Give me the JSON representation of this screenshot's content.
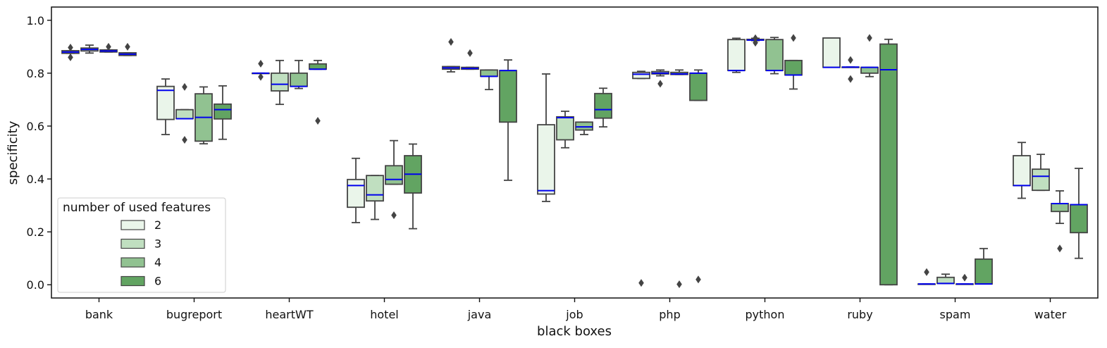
{
  "chart_data": {
    "type": "boxplot",
    "title": "",
    "xlabel": "black boxes",
    "ylabel": "specificity",
    "ylim": [
      -0.05,
      1.05
    ],
    "yticks": [
      0.0,
      0.2,
      0.4,
      0.6,
      0.8,
      1.0
    ],
    "ytick_labels": [
      "0.0",
      "0.2",
      "0.4",
      "0.6",
      "0.8",
      "1.0"
    ],
    "categories": [
      "bank",
      "bugreport",
      "heartWT",
      "hotel",
      "java",
      "job",
      "php",
      "python",
      "ruby",
      "spam",
      "water"
    ],
    "legend": {
      "title": "number of used features",
      "placement": "lower-left",
      "entries": [
        "2",
        "3",
        "4",
        "6"
      ]
    },
    "colors": {
      "series": [
        "#eaf5ea",
        "#c0dfc0",
        "#91c291",
        "#62a462"
      ],
      "median": "#0000ee",
      "edge": "#444444"
    },
    "grid": false,
    "series": [
      {
        "name": "2",
        "boxes": [
          {
            "q1": 0.875,
            "median": 0.88,
            "q3": 0.885,
            "whislo": 0.875,
            "whishi": 0.885,
            "fliers": [
              0.86,
              0.897
            ]
          },
          {
            "q1": 0.625,
            "median": 0.735,
            "q3": 0.75,
            "whislo": 0.568,
            "whishi": 0.778,
            "fliers": []
          },
          {
            "q1": 0.8,
            "median": 0.8,
            "q3": 0.8,
            "whislo": 0.8,
            "whishi": 0.8,
            "fliers": [
              0.786,
              0.836
            ]
          },
          {
            "q1": 0.293,
            "median": 0.375,
            "q3": 0.398,
            "whislo": 0.235,
            "whishi": 0.478,
            "fliers": []
          },
          {
            "q1": 0.815,
            "median": 0.82,
            "q3": 0.825,
            "whislo": 0.805,
            "whishi": 0.825,
            "fliers": [
              0.918
            ]
          },
          {
            "q1": 0.343,
            "median": 0.356,
            "q3": 0.605,
            "whislo": 0.315,
            "whishi": 0.797,
            "fliers": []
          },
          {
            "q1": 0.78,
            "median": 0.796,
            "q3": 0.803,
            "whislo": 0.78,
            "whishi": 0.807,
            "fliers": [
              0.007
            ]
          },
          {
            "q1": 0.81,
            "median": 0.81,
            "q3": 0.927,
            "whislo": 0.803,
            "whishi": 0.932,
            "fliers": []
          },
          {
            "q1": 0.822,
            "median": 0.822,
            "q3": 0.933,
            "whislo": 0.822,
            "whishi": 0.933,
            "fliers": []
          },
          {
            "q1": 0.003,
            "median": 0.003,
            "q3": 0.003,
            "whislo": 0.003,
            "whishi": 0.003,
            "fliers": [
              0.048
            ]
          },
          {
            "q1": 0.375,
            "median": 0.375,
            "q3": 0.488,
            "whislo": 0.327,
            "whishi": 0.538,
            "fliers": []
          }
        ]
      },
      {
        "name": "3",
        "boxes": [
          {
            "q1": 0.884,
            "median": 0.89,
            "q3": 0.895,
            "whislo": 0.876,
            "whishi": 0.906,
            "fliers": []
          },
          {
            "q1": 0.628,
            "median": 0.628,
            "q3": 0.662,
            "whislo": 0.628,
            "whishi": 0.662,
            "fliers": [
              0.548,
              0.748
            ]
          },
          {
            "q1": 0.733,
            "median": 0.758,
            "q3": 0.8,
            "whislo": 0.682,
            "whishi": 0.848,
            "fliers": []
          },
          {
            "q1": 0.317,
            "median": 0.34,
            "q3": 0.413,
            "whislo": 0.247,
            "whishi": 0.413,
            "fliers": []
          },
          {
            "q1": 0.815,
            "median": 0.818,
            "q3": 0.822,
            "whislo": 0.815,
            "whishi": 0.822,
            "fliers": [
              0.876
            ]
          },
          {
            "q1": 0.548,
            "median": 0.632,
            "q3": 0.635,
            "whislo": 0.518,
            "whishi": 0.656,
            "fliers": []
          },
          {
            "q1": 0.797,
            "median": 0.8,
            "q3": 0.806,
            "whislo": 0.79,
            "whishi": 0.812,
            "fliers": [
              0.76
            ]
          },
          {
            "q1": 0.925,
            "median": 0.925,
            "q3": 0.928,
            "whislo": 0.923,
            "whishi": 0.932,
            "fliers": [
              0.915,
              0.932
            ]
          },
          {
            "q1": 0.823,
            "median": 0.823,
            "q3": 0.823,
            "whislo": 0.823,
            "whishi": 0.823,
            "fliers": [
              0.778,
              0.85
            ]
          },
          {
            "q1": 0.005,
            "median": 0.005,
            "q3": 0.028,
            "whislo": 0.005,
            "whishi": 0.04,
            "fliers": []
          },
          {
            "q1": 0.357,
            "median": 0.41,
            "q3": 0.437,
            "whislo": 0.357,
            "whishi": 0.493,
            "fliers": []
          }
        ]
      },
      {
        "name": "4",
        "boxes": [
          {
            "q1": 0.88,
            "median": 0.884,
            "q3": 0.888,
            "whislo": 0.88,
            "whishi": 0.888,
            "fliers": [
              0.9
            ]
          },
          {
            "q1": 0.543,
            "median": 0.633,
            "q3": 0.722,
            "whislo": 0.533,
            "whishi": 0.748,
            "fliers": []
          },
          {
            "q1": 0.75,
            "median": 0.75,
            "q3": 0.8,
            "whislo": 0.742,
            "whishi": 0.848,
            "fliers": []
          },
          {
            "q1": 0.38,
            "median": 0.398,
            "q3": 0.45,
            "whislo": 0.38,
            "whishi": 0.545,
            "fliers": [
              0.263
            ]
          },
          {
            "q1": 0.788,
            "median": 0.788,
            "q3": 0.812,
            "whislo": 0.738,
            "whishi": 0.812,
            "fliers": []
          },
          {
            "q1": 0.585,
            "median": 0.597,
            "q3": 0.615,
            "whislo": 0.568,
            "whishi": 0.615,
            "fliers": []
          },
          {
            "q1": 0.795,
            "median": 0.797,
            "q3": 0.803,
            "whislo": 0.795,
            "whishi": 0.812,
            "fliers": [
              0.002
            ]
          },
          {
            "q1": 0.81,
            "median": 0.81,
            "q3": 0.927,
            "whislo": 0.798,
            "whishi": 0.935,
            "fliers": []
          },
          {
            "q1": 0.8,
            "median": 0.822,
            "q3": 0.822,
            "whislo": 0.787,
            "whishi": 0.822,
            "fliers": [
              0.933
            ]
          },
          {
            "q1": 0.003,
            "median": 0.003,
            "q3": 0.003,
            "whislo": 0.003,
            "whishi": 0.003,
            "fliers": [
              0.027
            ]
          },
          {
            "q1": 0.277,
            "median": 0.307,
            "q3": 0.307,
            "whislo": 0.232,
            "whishi": 0.355,
            "fliers": [
              0.137
            ]
          }
        ]
      },
      {
        "name": "6",
        "boxes": [
          {
            "q1": 0.867,
            "median": 0.872,
            "q3": 0.877,
            "whislo": 0.867,
            "whishi": 0.877,
            "fliers": [
              0.9
            ]
          },
          {
            "q1": 0.627,
            "median": 0.662,
            "q3": 0.683,
            "whislo": 0.55,
            "whishi": 0.752,
            "fliers": []
          },
          {
            "q1": 0.815,
            "median": 0.815,
            "q3": 0.835,
            "whislo": 0.815,
            "whishi": 0.848,
            "fliers": [
              0.62
            ]
          },
          {
            "q1": 0.347,
            "median": 0.418,
            "q3": 0.488,
            "whislo": 0.212,
            "whishi": 0.532,
            "fliers": []
          },
          {
            "q1": 0.615,
            "median": 0.81,
            "q3": 0.81,
            "whislo": 0.395,
            "whishi": 0.85,
            "fliers": []
          },
          {
            "q1": 0.63,
            "median": 0.662,
            "q3": 0.723,
            "whislo": 0.597,
            "whishi": 0.743,
            "fliers": []
          },
          {
            "q1": 0.697,
            "median": 0.8,
            "q3": 0.8,
            "whislo": 0.697,
            "whishi": 0.812,
            "fliers": [
              0.02
            ]
          },
          {
            "q1": 0.793,
            "median": 0.793,
            "q3": 0.848,
            "whislo": 0.74,
            "whishi": 0.848,
            "fliers": [
              0.933
            ]
          },
          {
            "q1": 0.0,
            "median": 0.813,
            "q3": 0.91,
            "whislo": 0.0,
            "whishi": 0.928,
            "fliers": []
          },
          {
            "q1": 0.003,
            "median": 0.003,
            "q3": 0.097,
            "whislo": 0.003,
            "whishi": 0.137,
            "fliers": []
          },
          {
            "q1": 0.197,
            "median": 0.303,
            "q3": 0.303,
            "whislo": 0.1,
            "whishi": 0.44,
            "fliers": []
          }
        ]
      }
    ]
  }
}
